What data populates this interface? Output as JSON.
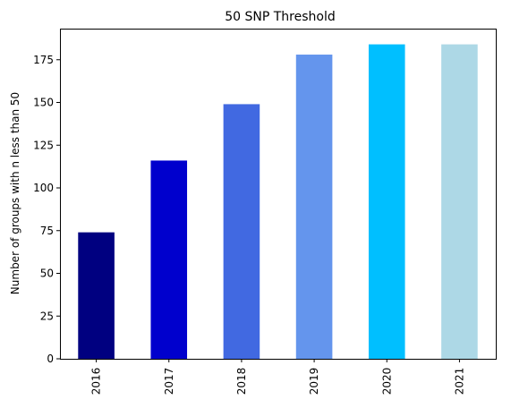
{
  "chart_data": {
    "type": "bar",
    "title": "50 SNP Threshold",
    "xlabel": "",
    "ylabel": "Number of groups with n less than 50",
    "categories": [
      "2016",
      "2017",
      "2018",
      "2019",
      "2020",
      "2021"
    ],
    "values": [
      74,
      116,
      149,
      178,
      184,
      184
    ],
    "colors": [
      "#000080",
      "#0000cd",
      "#4169e1",
      "#6495ed",
      "#00bfff",
      "#add8e6"
    ],
    "yticks": [
      0,
      25,
      50,
      75,
      100,
      125,
      150,
      175
    ],
    "ylim": [
      0,
      193.2
    ],
    "grid": false,
    "legend": "none"
  }
}
